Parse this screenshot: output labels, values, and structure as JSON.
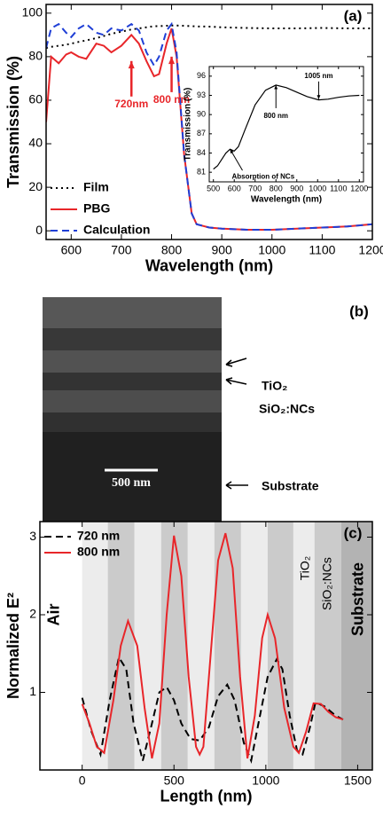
{
  "chart_data": [
    {
      "type": "line",
      "panel_label": "(a)",
      "x_label": "Wavelength (nm)",
      "y_label": "Transmission (%)",
      "xlim": [
        550,
        1200
      ],
      "xticks": [
        600,
        700,
        800,
        900,
        1000,
        1100,
        1200
      ],
      "ylim": [
        -4,
        104
      ],
      "yticks": [
        0,
        20,
        40,
        60,
        80,
        100
      ],
      "legend": "lower left",
      "x": [
        550,
        560,
        575,
        590,
        600,
        615,
        630,
        650,
        665,
        680,
        700,
        720,
        735,
        750,
        765,
        775,
        790,
        800,
        810,
        825,
        840,
        850,
        875,
        900,
        950,
        1000,
        1050,
        1100,
        1150,
        1200
      ],
      "series": [
        {
          "name": "Film",
          "color": "#000000",
          "linestyle": "dotted",
          "values": [
            84,
            84.5,
            85,
            85.5,
            86,
            86.8,
            87.5,
            88.5,
            89.5,
            90.5,
            91.5,
            92.5,
            93,
            93.5,
            94,
            94,
            94.2,
            94.3,
            94.3,
            94.2,
            94,
            93.9,
            93.8,
            93.5,
            93.2,
            93,
            93,
            93.2,
            93,
            93
          ]
        },
        {
          "name": "PBG",
          "color": "#e8262a",
          "linestyle": "solid",
          "values": [
            50,
            80,
            77,
            81,
            82,
            80,
            79,
            86,
            85,
            82,
            85,
            90,
            86,
            78,
            71,
            72,
            86,
            93,
            80,
            35,
            8,
            3,
            1.5,
            1,
            0.5,
            0.5,
            1,
            1.5,
            2,
            3
          ]
        },
        {
          "name": "Calculation",
          "color": "#1f3fd6",
          "linestyle": "dashed",
          "values": [
            84,
            93,
            95,
            91,
            89,
            93,
            95,
            91,
            90,
            93,
            92,
            95,
            92,
            82,
            76,
            80,
            92,
            95,
            82,
            35,
            8,
            3,
            1.5,
            1,
            0.5,
            0.5,
            1,
            1.5,
            2,
            3
          ]
        }
      ],
      "annotation_color": "#e8262a",
      "annotations": [
        {
          "text": "720nm",
          "x": 720,
          "y": 78,
          "side": "below"
        },
        {
          "text": "800 nm",
          "x": 800,
          "y": 80,
          "side": "below"
        }
      ]
    },
    {
      "type": "line",
      "x_label": "Wavelength (nm)",
      "y_label": "Transmission (%)",
      "xlim": [
        480,
        1220
      ],
      "xticks": [
        500,
        600,
        700,
        800,
        900,
        1000,
        1100,
        1200
      ],
      "ylim": [
        79.5,
        97.5
      ],
      "yticks": [
        81,
        84,
        87,
        90,
        93,
        96
      ],
      "x": [
        500,
        520,
        540,
        560,
        580,
        600,
        620,
        650,
        700,
        750,
        800,
        850,
        900,
        950,
        1005,
        1050,
        1100,
        1150,
        1200
      ],
      "series": [
        {
          "color": "#000000",
          "linestyle": "solid",
          "values": [
            81.5,
            82,
            83,
            84,
            84.6,
            84.3,
            85,
            87.5,
            91.5,
            93.8,
            94.6,
            94.2,
            93.5,
            92.8,
            92.3,
            92.4,
            92.7,
            92.9,
            93
          ]
        }
      ],
      "annotation_color": "#000000",
      "annotations": [
        {
          "text": "800 nm",
          "x": 800,
          "y": 94.6,
          "side": "below"
        },
        {
          "text": "1005 nm",
          "x": 1005,
          "y": 92.4,
          "side": "above"
        },
        {
          "text": "Absorption of NCs",
          "x": 580,
          "y": 84.6,
          "side": "below-right"
        }
      ]
    },
    {
      "type": "line",
      "panel_label": "(c)",
      "x_label": "Length (nm)",
      "y_label": "Normalized E²",
      "xlim": [
        -230,
        1580
      ],
      "xticks": [
        0,
        500,
        1000,
        1500
      ],
      "ylim": [
        0,
        3.2
      ],
      "yticks": [
        1,
        2,
        3
      ],
      "legend": "upper left",
      "layer_boundaries": [
        0,
        140,
        285,
        430,
        575,
        720,
        865,
        1010,
        1150,
        1265,
        1410
      ],
      "layer_colors": [
        "#ececec",
        "#cbcbcb",
        "#ececec",
        "#cbcbcb",
        "#ececec",
        "#cbcbcb",
        "#ececec",
        "#cbcbcb",
        "#ececec",
        "#cbcbcb",
        "#b3b3b3"
      ],
      "series": [
        {
          "name": "720 nm",
          "color": "#000000",
          "linestyle": "dashed",
          "x": [
            0,
            50,
            100,
            150,
            200,
            240,
            280,
            330,
            380,
            420,
            460,
            500,
            540,
            590,
            640,
            690,
            740,
            790,
            830,
            880,
            920,
            960,
            1010,
            1060,
            1090,
            1130,
            1170,
            1200,
            1240,
            1270,
            1320,
            1380,
            1420
          ],
          "values": [
            0.93,
            0.5,
            0.2,
            0.9,
            1.45,
            1.3,
            0.6,
            0.12,
            0.6,
            1.0,
            1.07,
            0.9,
            0.6,
            0.4,
            0.38,
            0.55,
            0.95,
            1.1,
            0.9,
            0.35,
            0.12,
            0.6,
            1.2,
            1.43,
            1.3,
            0.7,
            0.25,
            0.2,
            0.55,
            0.87,
            0.82,
            0.7,
            0.65
          ]
        },
        {
          "name": "800 nm",
          "color": "#e8262a",
          "linestyle": "solid",
          "x": [
            0,
            40,
            80,
            120,
            170,
            210,
            250,
            300,
            340,
            380,
            420,
            460,
            500,
            540,
            580,
            620,
            640,
            660,
            700,
            740,
            780,
            820,
            860,
            900,
            940,
            980,
            1010,
            1050,
            1100,
            1150,
            1180,
            1220,
            1260,
            1300,
            1340,
            1380,
            1420
          ],
          "values": [
            0.85,
            0.6,
            0.3,
            0.22,
            0.9,
            1.6,
            1.92,
            1.6,
            0.8,
            0.15,
            0.6,
            2.0,
            3.02,
            2.5,
            1.2,
            0.3,
            0.2,
            0.3,
            1.5,
            2.7,
            3.05,
            2.6,
            1.2,
            0.15,
            0.7,
            1.7,
            2.0,
            1.7,
            0.8,
            0.3,
            0.22,
            0.5,
            0.86,
            0.85,
            0.75,
            0.68,
            0.65
          ]
        }
      ],
      "region_labels": [
        {
          "text": "Air",
          "x": -150,
          "y": 2.0
        },
        {
          "text": "TiO₂",
          "x": 1217,
          "y": 2.6
        },
        {
          "text": "SiO₂:NCs",
          "x": 1338,
          "y": 2.4
        },
        {
          "text": "Substrate",
          "x": 1507,
          "y": 2.2
        }
      ]
    }
  ],
  "micrograph": {
    "panel_label": "(b)",
    "layer_1": "TiO₂",
    "layer_2": "SiO₂:NCs",
    "scale_bar": "500 nm",
    "substrate": "Substrate"
  }
}
